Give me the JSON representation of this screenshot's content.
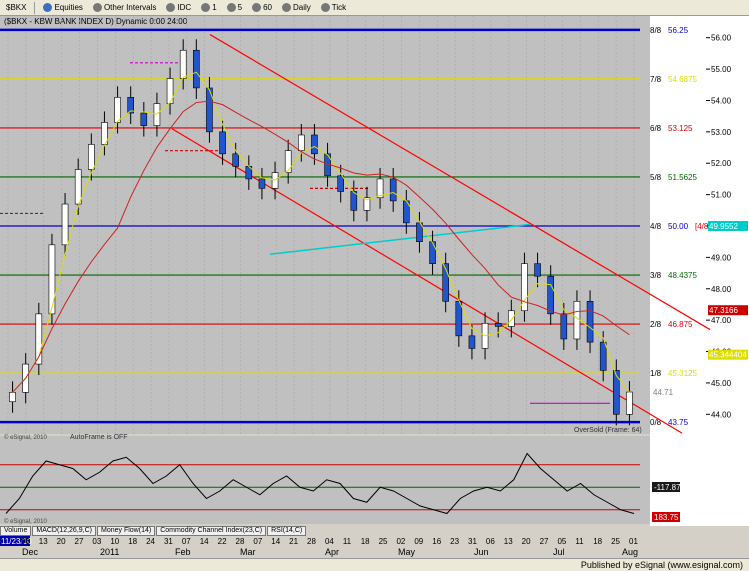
{
  "toolbar": {
    "symbol": "$BKX",
    "equities": "Equities",
    "other_intervals": "Other Intervals",
    "idc": "IDC",
    "i1": "1",
    "i5": "5",
    "i60": "60",
    "daily": "Daily",
    "tick": "Tick",
    "title_text": "($BKX - KBW BANK INDEX D) Dynamic 0:00 24:00"
  },
  "levels": [
    {
      "label": "8/8",
      "value": "56.25",
      "color": "#0000cc"
    },
    {
      "label": "7/8",
      "value": "54.6875",
      "color": "#dddd00"
    },
    {
      "label": "6/8",
      "value": "53.125",
      "color": "#dd0000"
    },
    {
      "label": "5/8",
      "value": "51.5625",
      "color": "#006600"
    },
    {
      "label": "4/8",
      "value": "50.00",
      "color": "#0000cc"
    },
    {
      "label": "3/8",
      "value": "48.4375",
      "color": "#006600"
    },
    {
      "label": "2/8",
      "value": "46.875",
      "color": "#dd0000"
    },
    {
      "label": "1/8",
      "value": "45.3125",
      "color": "#dddd00"
    },
    {
      "label": "0/8",
      "value": "43.75",
      "color": "#0000cc"
    }
  ],
  "price_axis": [
    "56.00",
    "55.00",
    "54.00",
    "53.00",
    "52.00",
    "51.00",
    "50.00",
    "49.00",
    "48.00",
    "47.00",
    "46.00",
    "45.00",
    "44.00"
  ],
  "price_markers": [
    {
      "text": "[4/8",
      "color": "#cc0000"
    },
    {
      "text": "49.9552",
      "color": "#00cccc"
    },
    {
      "text": "47.3166",
      "color": "#cc0000"
    },
    {
      "text": "45.344404",
      "color": "#dddd00"
    },
    {
      "text": "44.71",
      "color": "#808080"
    }
  ],
  "oversold": "OverSold (Frame: 64)",
  "autoframe": "AutoFrame is OFF",
  "watermark": "© eSignal, 2010",
  "watermark2": "© eSignal, 2010",
  "lower_axis": [
    "-117.87",
    "183.75"
  ],
  "tabs": [
    "Volume",
    "MACD(12,26,9,C)",
    "Money Flow(14)",
    "Commodity Channel Index(23,C)",
    "RSI(14,C)"
  ],
  "dates_days": [
    "11/23/10",
    "06",
    "13",
    "20",
    "27",
    "03",
    "10",
    "18",
    "24",
    "31",
    "07",
    "14",
    "22",
    "28",
    "07",
    "14",
    "21",
    "28",
    "04",
    "11",
    "18",
    "25",
    "02",
    "09",
    "16",
    "23",
    "31",
    "06",
    "13",
    "20",
    "27",
    "05",
    "11",
    "18",
    "25",
    "01"
  ],
  "months": [
    "Dec",
    "2011",
    "Feb",
    "Mar",
    "Apr",
    "May",
    "Jun",
    "Jul",
    "Aug"
  ],
  "footer": "Published by eSignal (www.esignal.com)",
  "chart_data": {
    "type": "candlestick",
    "title": "$BKX - KBW BANK INDEX D",
    "ylim": [
      43.5,
      56.5
    ],
    "series": [
      {
        "name": "close",
        "values": [
          44.7,
          45.6,
          47.2,
          49.4,
          50.7,
          51.8,
          52.6,
          53.3,
          54.1,
          53.6,
          53.2,
          53.9,
          54.7,
          55.6,
          54.4,
          53.0,
          52.3,
          51.9,
          51.5,
          51.2,
          51.7,
          52.4,
          52.9,
          52.3,
          51.6,
          51.1,
          50.5,
          50.9,
          51.5,
          50.8,
          50.1,
          49.5,
          48.8,
          47.6,
          46.5,
          46.1,
          46.9,
          46.8,
          47.3,
          48.8,
          48.4,
          47.2,
          46.4,
          47.6,
          46.3,
          45.4,
          44.0,
          44.71
        ]
      }
    ]
  }
}
